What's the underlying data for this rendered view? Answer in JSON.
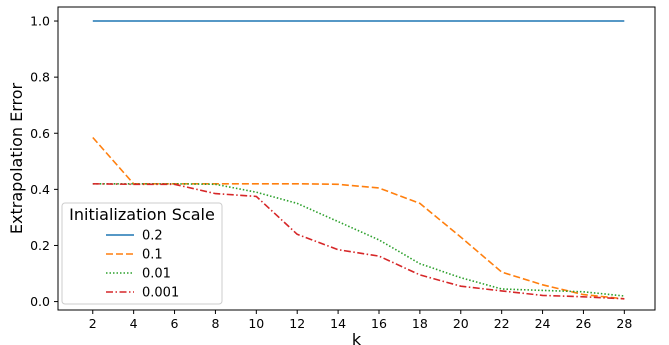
{
  "chart_data": {
    "type": "line",
    "xlabel": "k",
    "ylabel": "Extrapolation Error",
    "x": [
      2,
      4,
      6,
      8,
      10,
      12,
      14,
      16,
      18,
      20,
      22,
      24,
      26,
      28
    ],
    "xticks": [
      "2",
      "4",
      "6",
      "8",
      "10",
      "12",
      "14",
      "16",
      "18",
      "20",
      "22",
      "24",
      "26",
      "28"
    ],
    "xlim": [
      0.3,
      29.5
    ],
    "yticks": [
      "0.0",
      "0.2",
      "0.4",
      "0.6",
      "0.8",
      "1.0"
    ],
    "ylim": [
      -0.03,
      1.05
    ],
    "grid": false,
    "legend": {
      "title": "Initialization Scale",
      "placement": "lower-left"
    },
    "series": [
      {
        "name": "0.2",
        "color": "#1f77b4",
        "style": "solid",
        "values": [
          1.0,
          1.0,
          1.0,
          1.0,
          1.0,
          1.0,
          1.0,
          1.0,
          1.0,
          1.0,
          1.0,
          1.0,
          1.0,
          1.0
        ]
      },
      {
        "name": "0.1",
        "color": "#ff7f0e",
        "style": "dashed",
        "values": [
          0.585,
          0.42,
          0.42,
          0.42,
          0.42,
          0.42,
          0.418,
          0.405,
          0.35,
          0.23,
          0.105,
          0.06,
          0.025,
          0.01
        ]
      },
      {
        "name": "0.01",
        "color": "#2ca02c",
        "style": "dotted",
        "values": [
          0.42,
          0.42,
          0.42,
          0.418,
          0.39,
          0.35,
          0.285,
          0.22,
          0.135,
          0.085,
          0.045,
          0.04,
          0.035,
          0.02
        ]
      },
      {
        "name": "0.001",
        "color": "#d62728",
        "style": "dashdot",
        "values": [
          0.42,
          0.418,
          0.418,
          0.385,
          0.375,
          0.24,
          0.185,
          0.162,
          0.095,
          0.055,
          0.038,
          0.022,
          0.017,
          0.01
        ]
      }
    ]
  }
}
